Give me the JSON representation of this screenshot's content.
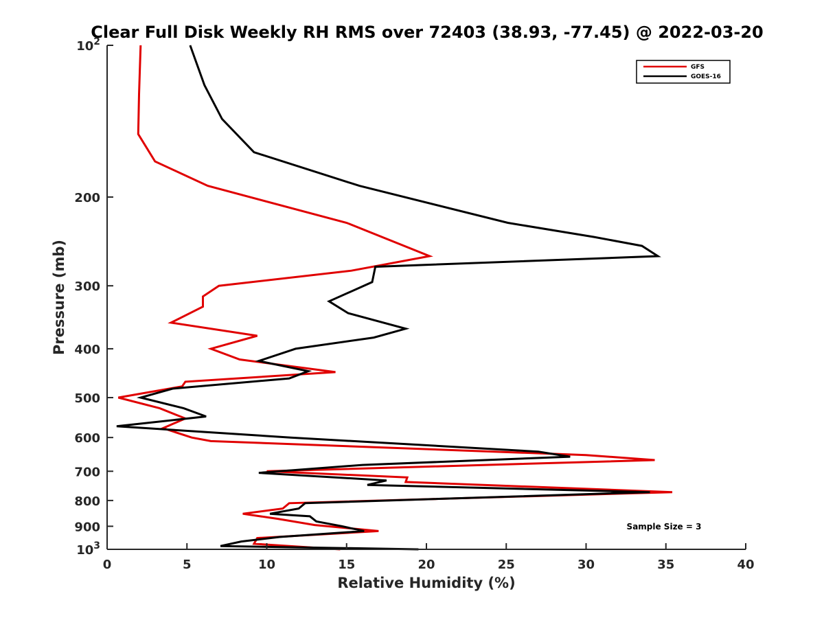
{
  "chart_data": {
    "type": "line",
    "title": "Clear Full Disk Weekly RH RMS over 72403 (38.93, -77.45) @ 2022-03-20",
    "xlabel": "Relative Humidity (%)",
    "ylabel": "Pressure (mb)",
    "xlim": [
      0,
      40
    ],
    "ylim": [
      100,
      1000
    ],
    "y_scale": "log",
    "y_reversed": true,
    "grid": false,
    "legend_position": "top-right",
    "x_ticks": [
      0,
      5,
      10,
      15,
      20,
      25,
      30,
      35,
      40
    ],
    "x_tick_labels": [
      "0",
      "5",
      "10",
      "15",
      "20",
      "25",
      "30",
      "35",
      "40"
    ],
    "y_ticks": [
      100,
      200,
      300,
      400,
      500,
      600,
      700,
      800,
      900,
      1000
    ],
    "y_tick_labels": [
      {
        "base": "10",
        "exp": "2"
      },
      {
        "base": "200",
        "exp": ""
      },
      {
        "base": "300",
        "exp": ""
      },
      {
        "base": "400",
        "exp": ""
      },
      {
        "base": "500",
        "exp": ""
      },
      {
        "base": "600",
        "exp": ""
      },
      {
        "base": "700",
        "exp": ""
      },
      {
        "base": "800",
        "exp": ""
      },
      {
        "base": "900",
        "exp": ""
      },
      {
        "base": "10",
        "exp": "3"
      }
    ],
    "annotation": "Sample Size = 3",
    "series": [
      {
        "name": "GFS",
        "color": "#e00000",
        "points": [
          [
            2.1,
            100
          ],
          [
            2.0,
            125
          ],
          [
            1.95,
            150
          ],
          [
            3.0,
            170
          ],
          [
            6.3,
            190
          ],
          [
            15.0,
            225
          ],
          [
            20.2,
            262
          ],
          [
            15.3,
            280
          ],
          [
            7.0,
            300
          ],
          [
            6.0,
            315
          ],
          [
            6.0,
            330
          ],
          [
            4.0,
            355
          ],
          [
            9.4,
            377
          ],
          [
            6.5,
            400
          ],
          [
            8.3,
            420
          ],
          [
            14.3,
            445
          ],
          [
            4.9,
            465
          ],
          [
            4.7,
            475
          ],
          [
            0.7,
            500
          ],
          [
            3.3,
            525
          ],
          [
            4.9,
            550
          ],
          [
            3.5,
            575
          ],
          [
            5.3,
            600
          ],
          [
            6.5,
            610
          ],
          [
            30.0,
            650
          ],
          [
            34.3,
            665
          ],
          [
            10.0,
            700
          ],
          [
            18.8,
            720
          ],
          [
            18.7,
            735
          ],
          [
            35.4,
            770
          ],
          [
            11.4,
            810
          ],
          [
            11.0,
            830
          ],
          [
            8.5,
            850
          ],
          [
            10.7,
            870
          ],
          [
            13.0,
            895
          ],
          [
            17.0,
            920
          ],
          [
            9.4,
            950
          ],
          [
            9.2,
            975
          ],
          [
            14.6,
            1000
          ]
        ]
      },
      {
        "name": "GOES-16",
        "color": "#000000",
        "points": [
          [
            5.2,
            100
          ],
          [
            6.1,
            120
          ],
          [
            7.2,
            140
          ],
          [
            9.2,
            163
          ],
          [
            15.8,
            190
          ],
          [
            25.1,
            225
          ],
          [
            30.5,
            240
          ],
          [
            33.5,
            250
          ],
          [
            34.5,
            262
          ],
          [
            16.8,
            275
          ],
          [
            16.6,
            295
          ],
          [
            13.9,
            322
          ],
          [
            15.1,
            340
          ],
          [
            18.7,
            365
          ],
          [
            16.7,
            380
          ],
          [
            11.8,
            400
          ],
          [
            9.5,
            423
          ],
          [
            12.6,
            443
          ],
          [
            11.4,
            458
          ],
          [
            4.1,
            480
          ],
          [
            2.1,
            500
          ],
          [
            4.8,
            525
          ],
          [
            6.2,
            545
          ],
          [
            0.6,
            570
          ],
          [
            11.5,
            600
          ],
          [
            27.0,
            640
          ],
          [
            29.0,
            655
          ],
          [
            16.0,
            680
          ],
          [
            9.5,
            705
          ],
          [
            17.5,
            730
          ],
          [
            16.3,
            745
          ],
          [
            34.0,
            770
          ],
          [
            12.4,
            810
          ],
          [
            12.0,
            830
          ],
          [
            10.2,
            850
          ],
          [
            12.7,
            860
          ],
          [
            13.1,
            880
          ],
          [
            14.7,
            900
          ],
          [
            16.1,
            920
          ],
          [
            10.8,
            945
          ],
          [
            8.4,
            965
          ],
          [
            7.1,
            985
          ],
          [
            19.5,
            1000
          ]
        ]
      }
    ]
  }
}
